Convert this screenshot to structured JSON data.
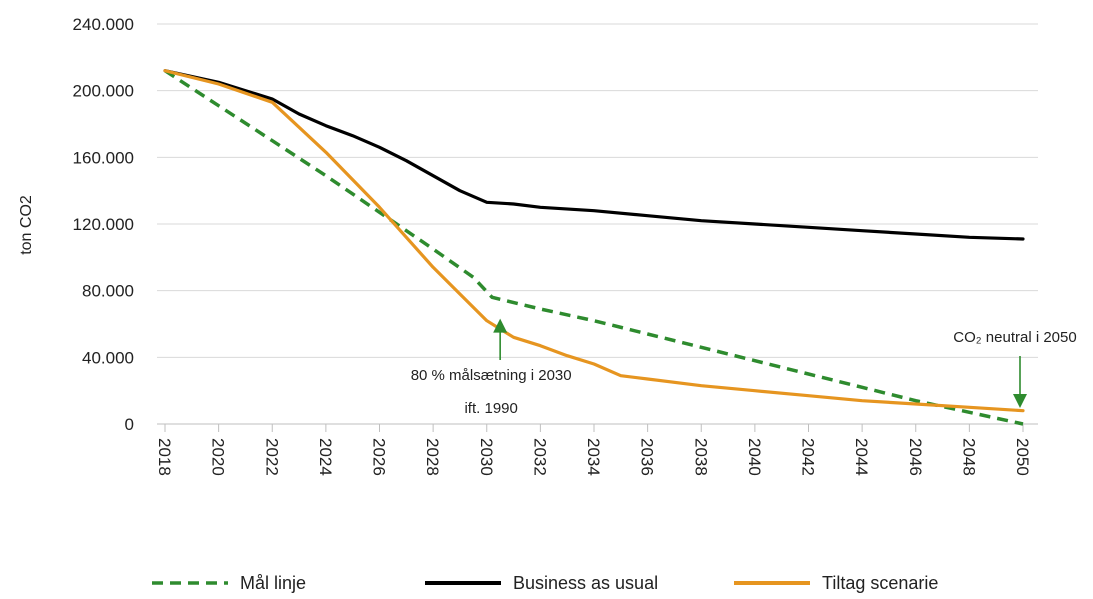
{
  "chart_data": {
    "type": "line",
    "ylabel": "ton CO2",
    "ylim": [
      0,
      240000
    ],
    "y_ticks": [
      0,
      40000,
      80000,
      120000,
      160000,
      200000,
      240000
    ],
    "y_tick_labels": [
      "0",
      "40.000",
      "80.000",
      "120.000",
      "160.000",
      "200.000",
      "240.000"
    ],
    "x_ticks": [
      "2018",
      "2020",
      "2022",
      "2024",
      "2026",
      "2028",
      "2030",
      "2032",
      "2034",
      "2036",
      "2038",
      "2040",
      "2042",
      "2044",
      "2046",
      "2048",
      "2050"
    ],
    "grid": true,
    "legend_position": "bottom",
    "series": [
      {
        "name": "Mål linje",
        "color": "#2e8b2e",
        "style": "dashed",
        "points": [
          [
            2018,
            212000
          ],
          [
            2020,
            191000
          ],
          [
            2022,
            170000
          ],
          [
            2024,
            149000
          ],
          [
            2026,
            127000
          ],
          [
            2028,
            105000
          ],
          [
            2029.5,
            88000
          ],
          [
            2030.2,
            76000
          ],
          [
            2032,
            69000
          ],
          [
            2034,
            62000
          ],
          [
            2036,
            54000
          ],
          [
            2038,
            46000
          ],
          [
            2040,
            38000
          ],
          [
            2042,
            30000
          ],
          [
            2044,
            22000
          ],
          [
            2046,
            14000
          ],
          [
            2048,
            7000
          ],
          [
            2050,
            0
          ]
        ]
      },
      {
        "name": "Business as usual",
        "color": "#000000",
        "style": "solid",
        "points": [
          [
            2018,
            212000
          ],
          [
            2020,
            205000
          ],
          [
            2022,
            195000
          ],
          [
            2023,
            186000
          ],
          [
            2024,
            179000
          ],
          [
            2025,
            173000
          ],
          [
            2026,
            166000
          ],
          [
            2027,
            158000
          ],
          [
            2028,
            149000
          ],
          [
            2029,
            140000
          ],
          [
            2030,
            133000
          ],
          [
            2031,
            132000
          ],
          [
            2032,
            130000
          ],
          [
            2034,
            128000
          ],
          [
            2036,
            125000
          ],
          [
            2038,
            122000
          ],
          [
            2040,
            120000
          ],
          [
            2042,
            118000
          ],
          [
            2044,
            116000
          ],
          [
            2046,
            114000
          ],
          [
            2048,
            112000
          ],
          [
            2050,
            111000
          ]
        ]
      },
      {
        "name": "Tiltag scenarie",
        "color": "#e69520",
        "style": "solid",
        "points": [
          [
            2018,
            212000
          ],
          [
            2020,
            204000
          ],
          [
            2022,
            193000
          ],
          [
            2024,
            163000
          ],
          [
            2026,
            130000
          ],
          [
            2028,
            94000
          ],
          [
            2029,
            78000
          ],
          [
            2030,
            62000
          ],
          [
            2031,
            52000
          ],
          [
            2032,
            47000
          ],
          [
            2033,
            41000
          ],
          [
            2034,
            36000
          ],
          [
            2035,
            29000
          ],
          [
            2036,
            27000
          ],
          [
            2038,
            23000
          ],
          [
            2040,
            20000
          ],
          [
            2042,
            17000
          ],
          [
            2044,
            14000
          ],
          [
            2046,
            12000
          ],
          [
            2048,
            10000
          ],
          [
            2050,
            8000
          ]
        ]
      }
    ],
    "annotations": [
      {
        "id": "target-2030",
        "lines": [
          "80 % målsætning i 2030",
          "ift. 1990"
        ],
        "arrow_x": 2030.5,
        "arrow_y": 62000,
        "color": "#2e8b2e"
      },
      {
        "id": "neutral-2050",
        "lines": [
          "CO₂ neutral i 2050"
        ],
        "arrow_x": 2050,
        "arrow_y": 10000,
        "color": "#2e8b2e"
      }
    ]
  }
}
